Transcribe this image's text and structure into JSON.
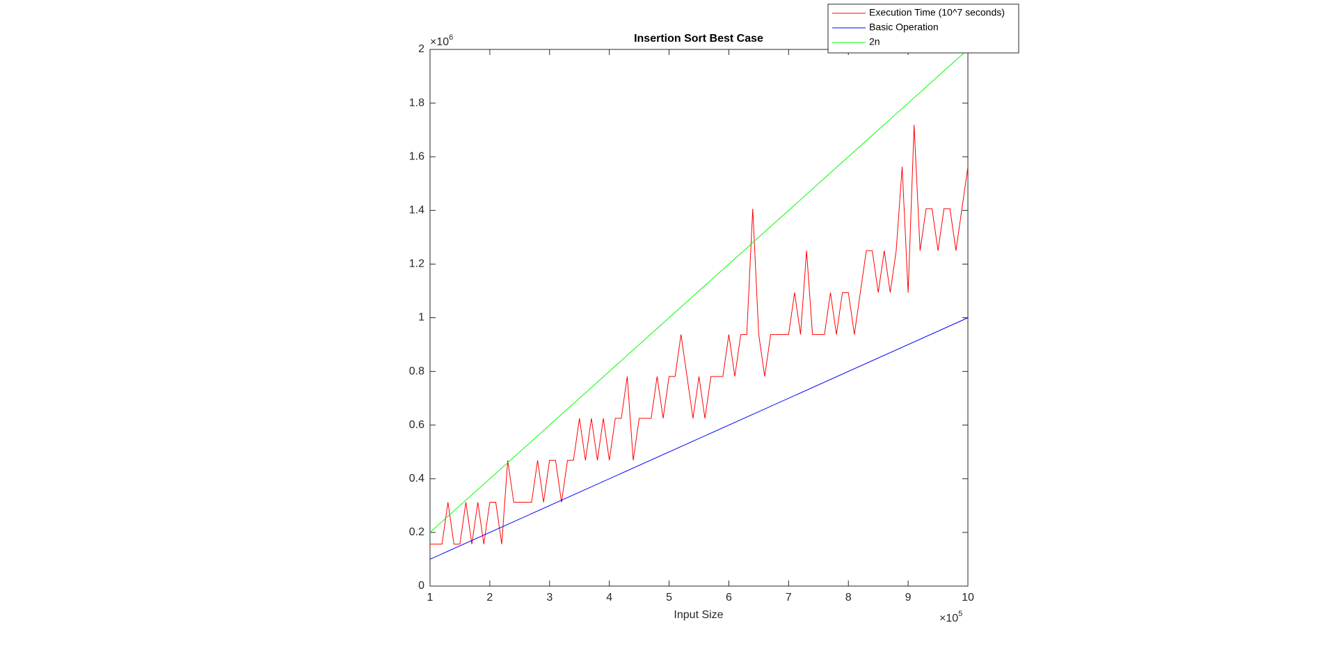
{
  "chart_data": {
    "type": "line",
    "title": "Insertion Sort Best Case",
    "xlabel": "Input Size",
    "x_multiplier": {
      "base": "×10",
      "power": "5"
    },
    "y_multiplier": {
      "base": "×10",
      "power": "6"
    },
    "xlim": [
      100000,
      1000000
    ],
    "ylim": [
      0,
      2000000
    ],
    "xticks": [
      {
        "value": 100000,
        "label": "1"
      },
      {
        "value": 200000,
        "label": "2"
      },
      {
        "value": 300000,
        "label": "3"
      },
      {
        "value": 400000,
        "label": "4"
      },
      {
        "value": 500000,
        "label": "5"
      },
      {
        "value": 600000,
        "label": "6"
      },
      {
        "value": 700000,
        "label": "7"
      },
      {
        "value": 800000,
        "label": "8"
      },
      {
        "value": 900000,
        "label": "9"
      },
      {
        "value": 1000000,
        "label": "10"
      }
    ],
    "yticks": [
      0,
      {
        "value": 200000,
        "label": "0.2"
      },
      {
        "value": 400000,
        "label": "0.4"
      },
      {
        "value": 600000,
        "label": "0.6"
      },
      {
        "value": 800000,
        "label": "0.8"
      },
      {
        "value": 1000000,
        "label": "1"
      },
      {
        "value": 1200000,
        "label": "1.2"
      },
      {
        "value": 1400000,
        "label": "1.4"
      },
      {
        "value": 1600000,
        "label": "1.6"
      },
      {
        "value": 1800000,
        "label": "1.8"
      },
      {
        "value": 2000000,
        "label": "2"
      }
    ],
    "legend": "top-right",
    "series": [
      {
        "name": "Execution Time (10^7 seconds)",
        "color": "#ff0000",
        "x": [
          100000,
          110000,
          120000,
          130000,
          140000,
          150000,
          160000,
          170000,
          180000,
          190000,
          200000,
          210000,
          220000,
          230000,
          240000,
          250000,
          260000,
          270000,
          280000,
          290000,
          300000,
          310000,
          320000,
          330000,
          340000,
          350000,
          360000,
          370000,
          380000,
          390000,
          400000,
          410000,
          420000,
          430000,
          440000,
          450000,
          460000,
          470000,
          480000,
          490000,
          500000,
          510000,
          520000,
          530000,
          540000,
          550000,
          560000,
          570000,
          580000,
          590000,
          600000,
          610000,
          620000,
          630000,
          640000,
          650000,
          660000,
          670000,
          680000,
          690000,
          700000,
          710000,
          720000,
          730000,
          740000,
          750000,
          760000,
          770000,
          780000,
          790000,
          800000,
          810000,
          820000,
          830000,
          840000,
          850000,
          860000,
          870000,
          880000,
          890000,
          900000,
          910000,
          920000,
          930000,
          940000,
          950000,
          960000,
          970000,
          980000,
          990000,
          1000000
        ],
        "values": [
          156250,
          156250,
          156250,
          312500,
          156250,
          156250,
          312500,
          156250,
          312500,
          156250,
          312500,
          312500,
          156250,
          468750,
          312500,
          312500,
          312500,
          312500,
          468750,
          312500,
          468750,
          468750,
          312500,
          468750,
          468750,
          625000,
          468750,
          625000,
          468750,
          625000,
          468750,
          625000,
          625000,
          781250,
          468750,
          625000,
          625000,
          625000,
          781250,
          625000,
          781250,
          781250,
          937500,
          781250,
          625000,
          781250,
          625000,
          781250,
          781250,
          781250,
          937500,
          781250,
          937500,
          937500,
          1406250,
          937500,
          781250,
          937500,
          937500,
          937500,
          937500,
          1093750,
          937500,
          1250000,
          937500,
          937500,
          937500,
          1093750,
          937500,
          1093750,
          1093750,
          937500,
          1093750,
          1250000,
          1250000,
          1093750,
          1250000,
          1093750,
          1250000,
          1562500,
          1093750,
          1718750,
          1250000,
          1406250,
          1406250,
          1250000,
          1406250,
          1406250,
          1250000,
          1406250,
          1562500
        ]
      },
      {
        "name": "Basic Operation",
        "color": "#0000ff",
        "x": [
          100000,
          1000000
        ],
        "values": [
          100000,
          1000000
        ]
      },
      {
        "name": "2n",
        "color": "#00ff00",
        "x": [
          100000,
          1000000
        ],
        "values": [
          200000,
          2000000
        ]
      }
    ]
  }
}
